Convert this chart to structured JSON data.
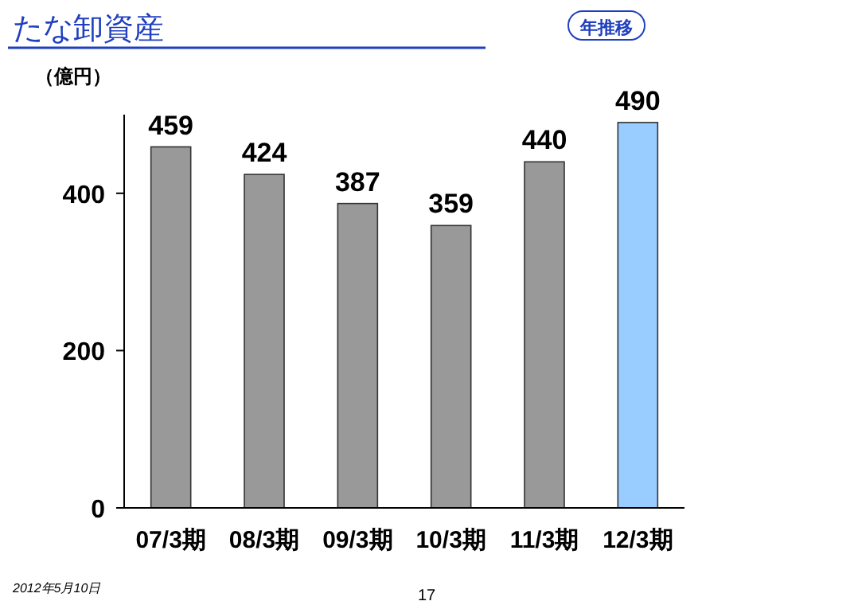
{
  "chart_data": {
    "type": "bar",
    "title": "たな卸資産",
    "ylabel": "（億円）",
    "categories": [
      "07/3期",
      "08/3期",
      "09/3期",
      "10/3期",
      "11/3期",
      "12/3期"
    ],
    "values": [
      459,
      424,
      387,
      359,
      440,
      490
    ],
    "colors": [
      "#999999",
      "#999999",
      "#999999",
      "#999999",
      "#999999",
      "#99ccff"
    ],
    "ylim": [
      0,
      500
    ],
    "yticks": [
      0,
      200,
      400
    ],
    "data_labels": true,
    "annotations": [
      "年推移",
      "2012年5月10日",
      "17"
    ]
  }
}
